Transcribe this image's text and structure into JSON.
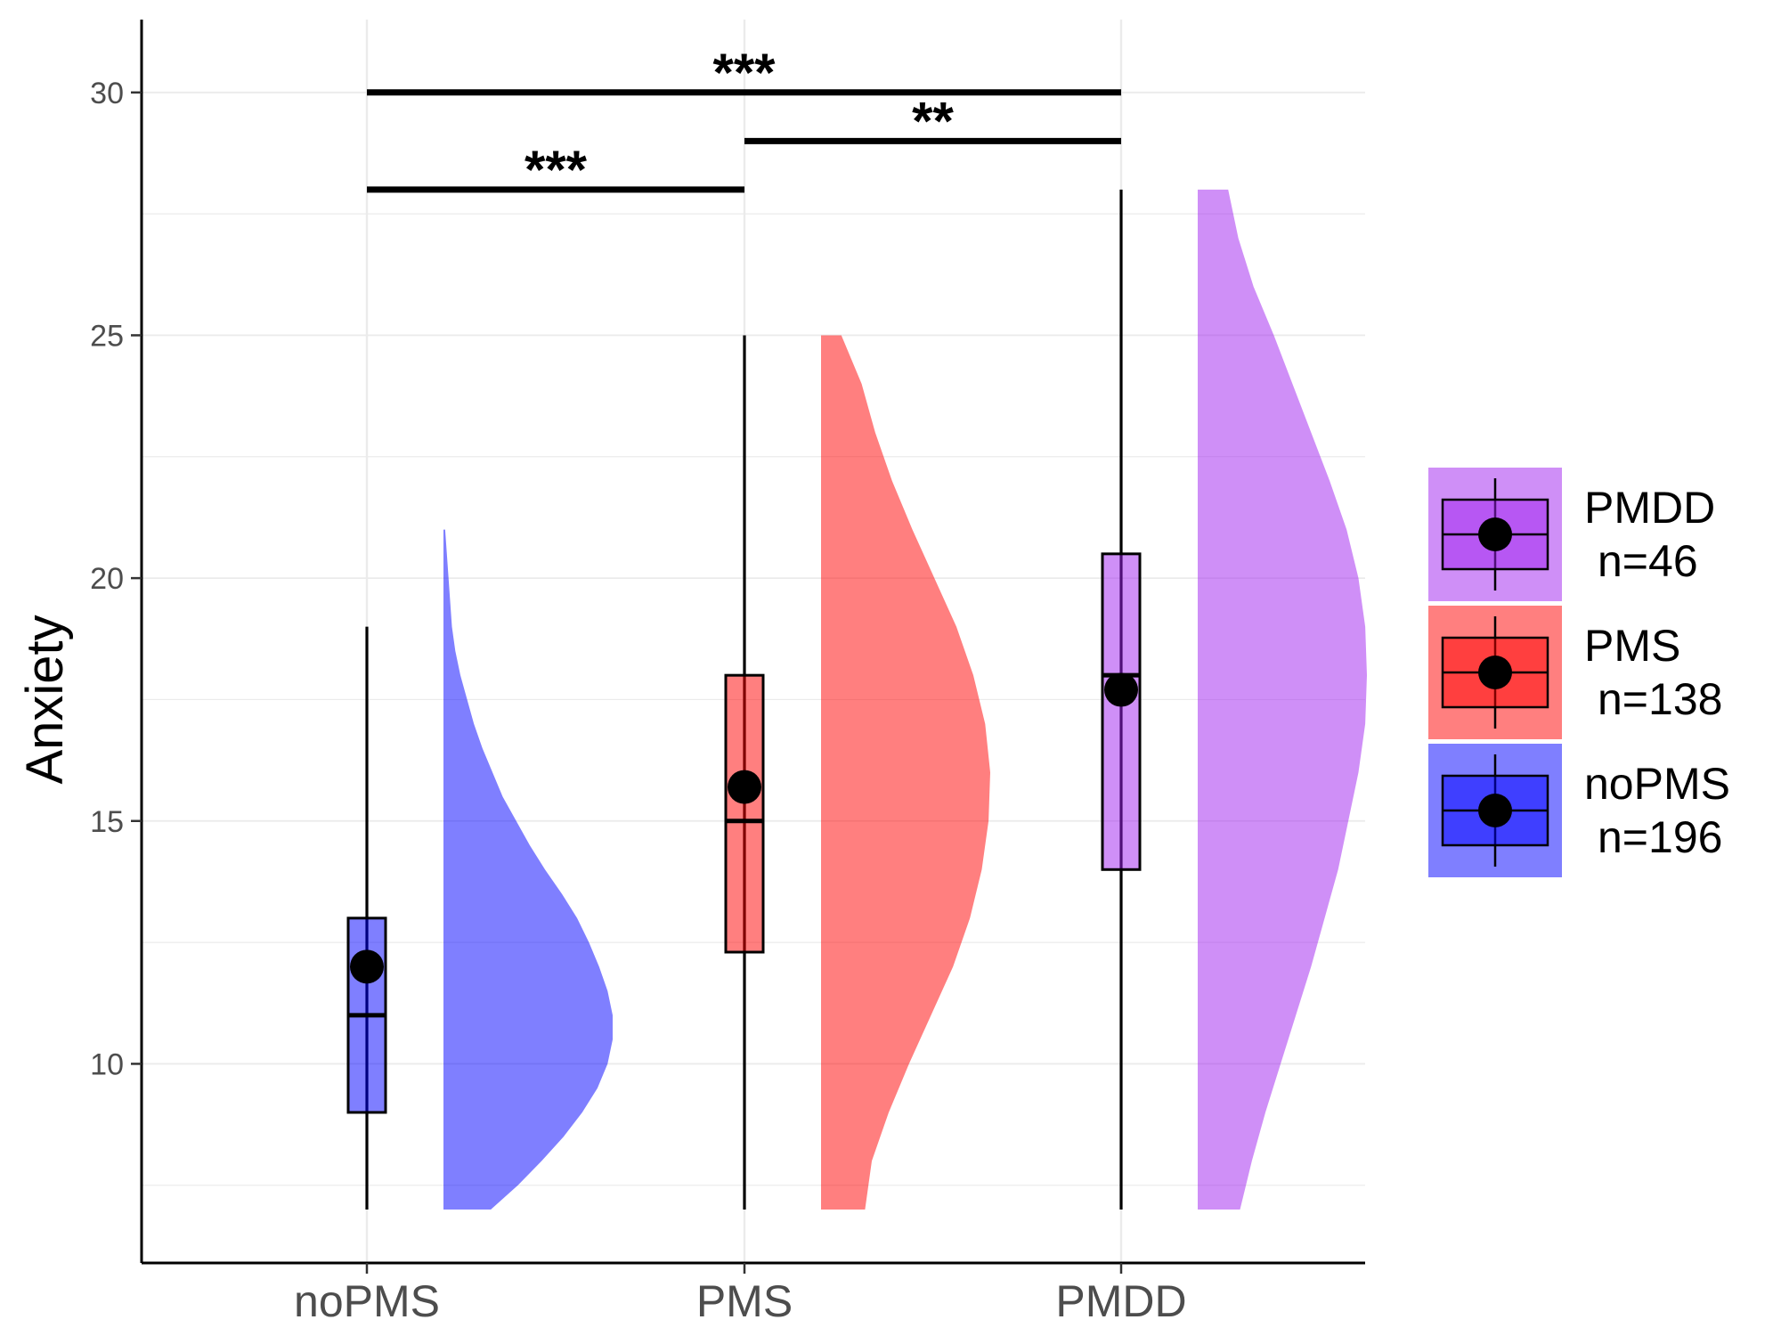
{
  "chart_data": {
    "type": "raincloud",
    "title": "",
    "xlabel": "",
    "ylabel": "Anxiety",
    "ylim": [
      5.9,
      31.5
    ],
    "yticks": [
      10,
      15,
      20,
      25,
      30
    ],
    "minor_gridlines": [
      7.5,
      12.5,
      17.5,
      22.5,
      27.5
    ],
    "grid": true,
    "legend_position": "right",
    "categories": [
      "noPMS",
      "PMS",
      "PMDD"
    ],
    "groups": [
      {
        "name": "noPMS",
        "legend_label": "noPMS",
        "legend_n": "n=196",
        "color": "#0000ff",
        "box": {
          "whisker_low": 7,
          "q1": 9,
          "median": 11,
          "q3": 13,
          "whisker_high": 19
        },
        "mean": 12,
        "density": [
          [
            7.0,
            0.28
          ],
          [
            7.5,
            0.44
          ],
          [
            8.0,
            0.58
          ],
          [
            8.5,
            0.71
          ],
          [
            9.0,
            0.82
          ],
          [
            9.5,
            0.91
          ],
          [
            10.0,
            0.97
          ],
          [
            10.5,
            1.0
          ],
          [
            11.0,
            1.0
          ],
          [
            11.5,
            0.97
          ],
          [
            12.0,
            0.92
          ],
          [
            12.5,
            0.86
          ],
          [
            13.0,
            0.79
          ],
          [
            13.5,
            0.7
          ],
          [
            14.0,
            0.6
          ],
          [
            14.5,
            0.51
          ],
          [
            15.0,
            0.43
          ],
          [
            15.5,
            0.35
          ],
          [
            16.0,
            0.29
          ],
          [
            16.5,
            0.23
          ],
          [
            17.0,
            0.18
          ],
          [
            17.5,
            0.14
          ],
          [
            18.0,
            0.1
          ],
          [
            18.5,
            0.07
          ],
          [
            19.0,
            0.05
          ],
          [
            19.5,
            0.04
          ],
          [
            20.0,
            0.03
          ],
          [
            20.5,
            0.02
          ],
          [
            21.0,
            0.01
          ]
        ]
      },
      {
        "name": "PMS",
        "legend_label": "PMS",
        "legend_n": "n=138",
        "color": "#ff0000",
        "box": {
          "whisker_low": 7,
          "q1": 12.3,
          "median": 15,
          "q3": 18,
          "whisker_high": 25
        },
        "mean": 15.7,
        "density": [
          [
            7.0,
            0.26
          ],
          [
            8.0,
            0.3
          ],
          [
            9.0,
            0.4
          ],
          [
            10.0,
            0.52
          ],
          [
            11.0,
            0.65
          ],
          [
            12.0,
            0.78
          ],
          [
            13.0,
            0.88
          ],
          [
            14.0,
            0.95
          ],
          [
            15.0,
            0.99
          ],
          [
            16.0,
            1.0
          ],
          [
            17.0,
            0.97
          ],
          [
            18.0,
            0.9
          ],
          [
            19.0,
            0.8
          ],
          [
            20.0,
            0.67
          ],
          [
            21.0,
            0.54
          ],
          [
            22.0,
            0.42
          ],
          [
            23.0,
            0.32
          ],
          [
            24.0,
            0.24
          ],
          [
            25.0,
            0.12
          ]
        ]
      },
      {
        "name": "PMDD",
        "legend_label": "PMDD",
        "legend_n": "n=46",
        "color": "#a020f0",
        "box": {
          "whisker_low": 7,
          "q1": 14,
          "median": 18,
          "q3": 20.5,
          "whisker_high": 28
        },
        "mean": 17.7,
        "density": [
          [
            7.0,
            0.25
          ],
          [
            8.0,
            0.32
          ],
          [
            9.0,
            0.4
          ],
          [
            10.0,
            0.49
          ],
          [
            11.0,
            0.58
          ],
          [
            12.0,
            0.67
          ],
          [
            13.0,
            0.75
          ],
          [
            14.0,
            0.83
          ],
          [
            15.0,
            0.89
          ],
          [
            16.0,
            0.95
          ],
          [
            17.0,
            0.99
          ],
          [
            18.0,
            1.0
          ],
          [
            19.0,
            0.99
          ],
          [
            20.0,
            0.95
          ],
          [
            21.0,
            0.88
          ],
          [
            22.0,
            0.78
          ],
          [
            23.0,
            0.67
          ],
          [
            24.0,
            0.56
          ],
          [
            25.0,
            0.45
          ],
          [
            26.0,
            0.33
          ],
          [
            27.0,
            0.24
          ],
          [
            28.0,
            0.18
          ]
        ]
      }
    ],
    "significance": [
      {
        "from": "noPMS",
        "to": "PMS",
        "y": 28,
        "label": "***"
      },
      {
        "from": "PMS",
        "to": "PMDD",
        "y": 29,
        "label": "**"
      },
      {
        "from": "noPMS",
        "to": "PMDD",
        "y": 30,
        "label": "***"
      }
    ],
    "legend_order": [
      "PMDD",
      "PMS",
      "noPMS"
    ]
  }
}
